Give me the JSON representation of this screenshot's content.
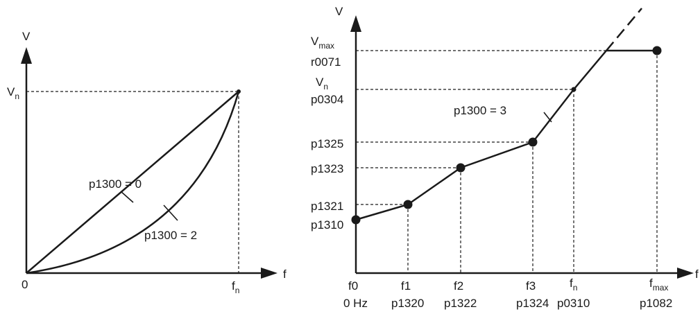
{
  "left": {
    "y_axis": "V",
    "x_axis": "f",
    "origin": "0",
    "vn": {
      "main": "V",
      "sub": "n"
    },
    "fn": {
      "main": "f",
      "sub": "n"
    },
    "curve_linear_label": "p1300 = 0",
    "curve_quadratic_label": "p1300 = 2"
  },
  "right": {
    "y_axis": "V",
    "x_axis": "f",
    "vmax": {
      "main": "V",
      "sub": "max",
      "param": "r0071"
    },
    "vn": {
      "main": "V",
      "sub": "n",
      "param": "p0304"
    },
    "y_params": [
      "p1325",
      "p1323",
      "p1321",
      "p1310"
    ],
    "curve_label": "p1300 = 3",
    "x_points": [
      {
        "main": "f0",
        "sub": "",
        "param": "0 Hz"
      },
      {
        "main": "f1",
        "sub": "",
        "param": "p1320"
      },
      {
        "main": "f2",
        "sub": "",
        "param": "p1322"
      },
      {
        "main": "f3",
        "sub": "",
        "param": "p1324"
      },
      {
        "main": "f",
        "sub": "n",
        "param": "p0310"
      },
      {
        "main": "f",
        "sub": "max",
        "param": "p1082"
      }
    ]
  }
}
